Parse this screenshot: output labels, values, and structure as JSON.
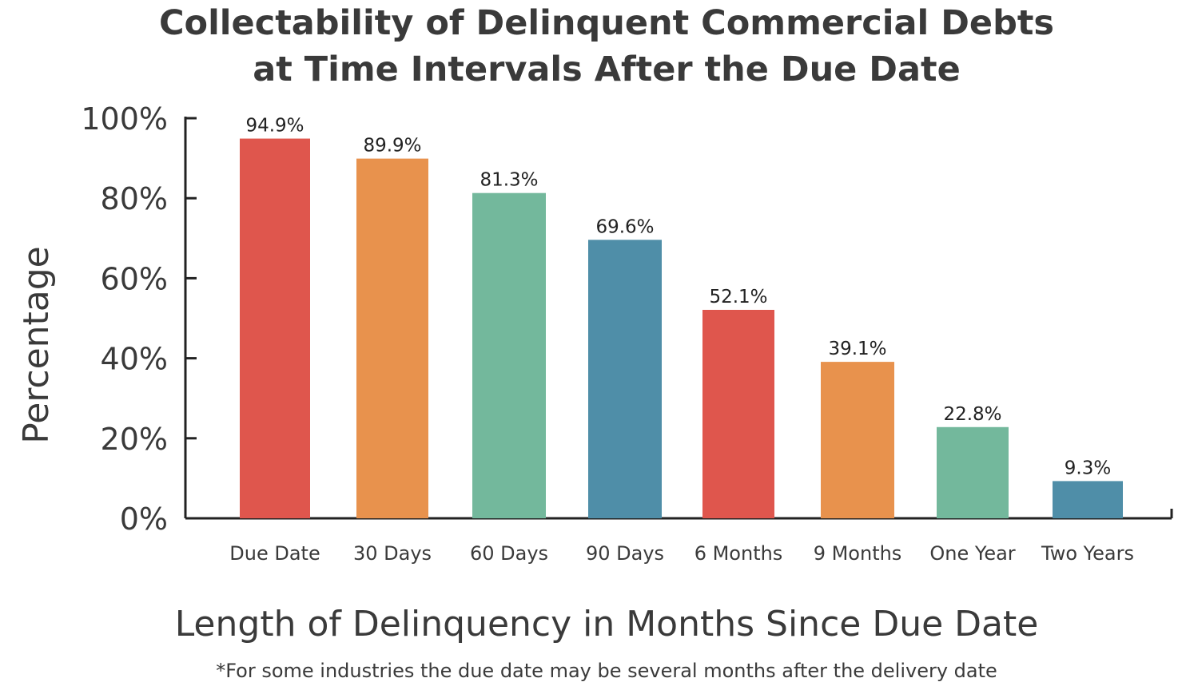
{
  "chart_data": {
    "type": "bar",
    "title_line1": "Collectability of Delinquent Commercial Debts",
    "title_line2": "at Time Intervals After the Due Date",
    "xlabel": "Length of Delinquency in Months Since Due Date",
    "ylabel": "Percentage",
    "footnote": "*For some industries the due date may be several months after the delivery date",
    "categories": [
      "Due Date",
      "30 Days",
      "60 Days",
      "90 Days",
      "6 Months",
      "9 Months",
      "One Year",
      "Two Years"
    ],
    "values": [
      94.9,
      89.9,
      81.3,
      69.6,
      52.1,
      39.1,
      22.8,
      9.3
    ],
    "value_labels": [
      "94.9%",
      "89.9%",
      "81.3%",
      "69.6%",
      "52.1%",
      "39.1%",
      "22.8%",
      "9.3%"
    ],
    "ylim": [
      0,
      100
    ],
    "yticks": [
      0,
      20,
      40,
      60,
      80,
      100
    ],
    "ytick_labels": [
      "0%",
      "20%",
      "40%",
      "60%",
      "80%",
      "100%"
    ],
    "grid": false,
    "colors": [
      "#df564d",
      "#e8924d",
      "#73b89c",
      "#4f8ea8",
      "#df564d",
      "#e8924d",
      "#73b89c",
      "#4f8ea8"
    ]
  }
}
